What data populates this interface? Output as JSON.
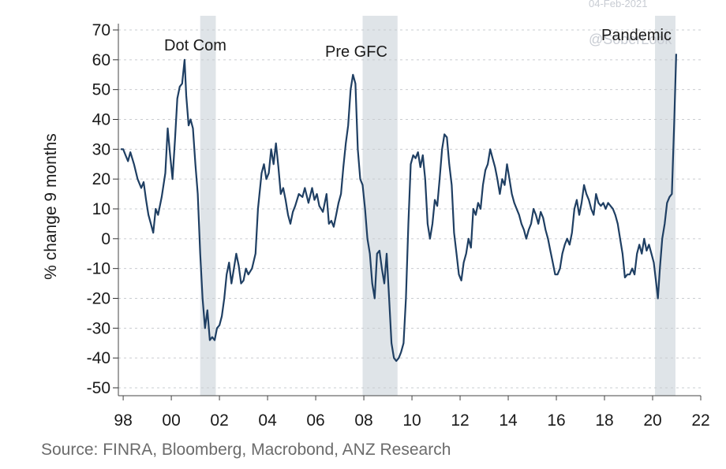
{
  "chart_data": {
    "type": "line",
    "ylabel": "% change 9 months",
    "ylim": [
      -50,
      70
    ],
    "xlim": [
      1997.8,
      2022
    ],
    "y_ticks": [
      70,
      60,
      50,
      40,
      30,
      20,
      10,
      0,
      -10,
      -20,
      -30,
      -40,
      -50
    ],
    "x_ticks": [
      {
        "value": 1998,
        "label": "98"
      },
      {
        "value": 2000,
        "label": "00"
      },
      {
        "value": 2002,
        "label": "02"
      },
      {
        "value": 2004,
        "label": "04"
      },
      {
        "value": 2006,
        "label": "06"
      },
      {
        "value": 2008,
        "label": "08"
      },
      {
        "value": 2010,
        "label": "10"
      },
      {
        "value": 2012,
        "label": "12"
      },
      {
        "value": 2014,
        "label": "14"
      },
      {
        "value": 2016,
        "label": "16"
      },
      {
        "value": 2018,
        "label": "18"
      },
      {
        "value": 2020,
        "label": "20"
      },
      {
        "value": 2022,
        "label": "22"
      }
    ],
    "grid": "horizontal dashed",
    "series_color": "#1f3f63",
    "shade_color": "#dfe4e8",
    "shaded_periods": [
      {
        "label": "Dot Com",
        "start": 2001.2,
        "end": 2001.85
      },
      {
        "label": "Pre GFC",
        "start": 2007.95,
        "end": 2009.4
      },
      {
        "label": "Pandemic",
        "start": 2020.1,
        "end": 2020.95
      }
    ],
    "series": [
      {
        "points": [
          [
            1997.9,
            30
          ],
          [
            1998.0,
            30
          ],
          [
            1998.1,
            28
          ],
          [
            1998.2,
            26
          ],
          [
            1998.3,
            29
          ],
          [
            1998.45,
            25
          ],
          [
            1998.6,
            20
          ],
          [
            1998.75,
            17
          ],
          [
            1998.85,
            19
          ],
          [
            1998.95,
            13
          ],
          [
            1999.05,
            8
          ],
          [
            1999.15,
            5
          ],
          [
            1999.25,
            2
          ],
          [
            1999.35,
            10
          ],
          [
            1999.45,
            8
          ],
          [
            1999.6,
            14
          ],
          [
            1999.75,
            22
          ],
          [
            1999.85,
            37
          ],
          [
            1999.95,
            28
          ],
          [
            2000.05,
            20
          ],
          [
            2000.15,
            33
          ],
          [
            2000.25,
            47
          ],
          [
            2000.35,
            51
          ],
          [
            2000.45,
            52
          ],
          [
            2000.55,
            60
          ],
          [
            2000.62,
            48
          ],
          [
            2000.72,
            38
          ],
          [
            2000.8,
            40
          ],
          [
            2000.9,
            37
          ],
          [
            2001.0,
            25
          ],
          [
            2001.1,
            15
          ],
          [
            2001.2,
            -5
          ],
          [
            2001.3,
            -20
          ],
          [
            2001.4,
            -30
          ],
          [
            2001.5,
            -24
          ],
          [
            2001.6,
            -34
          ],
          [
            2001.7,
            -33
          ],
          [
            2001.8,
            -34
          ],
          [
            2001.9,
            -30
          ],
          [
            2002.0,
            -29
          ],
          [
            2002.1,
            -26
          ],
          [
            2002.2,
            -20
          ],
          [
            2002.3,
            -12
          ],
          [
            2002.4,
            -8
          ],
          [
            2002.5,
            -15
          ],
          [
            2002.6,
            -10
          ],
          [
            2002.7,
            -5
          ],
          [
            2002.8,
            -9
          ],
          [
            2002.9,
            -15
          ],
          [
            2003.0,
            -14
          ],
          [
            2003.1,
            -10
          ],
          [
            2003.2,
            -12
          ],
          [
            2003.35,
            -10
          ],
          [
            2003.5,
            -5
          ],
          [
            2003.6,
            10
          ],
          [
            2003.75,
            22
          ],
          [
            2003.85,
            25
          ],
          [
            2003.95,
            20
          ],
          [
            2004.05,
            22
          ],
          [
            2004.15,
            30
          ],
          [
            2004.25,
            25
          ],
          [
            2004.35,
            32
          ],
          [
            2004.45,
            24
          ],
          [
            2004.55,
            15
          ],
          [
            2004.65,
            17
          ],
          [
            2004.75,
            13
          ],
          [
            2004.85,
            8
          ],
          [
            2004.95,
            5
          ],
          [
            2005.05,
            9
          ],
          [
            2005.15,
            11
          ],
          [
            2005.3,
            15
          ],
          [
            2005.45,
            14
          ],
          [
            2005.55,
            17
          ],
          [
            2005.7,
            12
          ],
          [
            2005.85,
            17
          ],
          [
            2005.95,
            13
          ],
          [
            2006.05,
            15
          ],
          [
            2006.15,
            11
          ],
          [
            2006.3,
            9
          ],
          [
            2006.45,
            15
          ],
          [
            2006.55,
            5
          ],
          [
            2006.65,
            6
          ],
          [
            2006.75,
            4
          ],
          [
            2006.85,
            8
          ],
          [
            2006.95,
            12
          ],
          [
            2007.05,
            15
          ],
          [
            2007.15,
            24
          ],
          [
            2007.25,
            32
          ],
          [
            2007.35,
            38
          ],
          [
            2007.45,
            50
          ],
          [
            2007.55,
            55
          ],
          [
            2007.65,
            52
          ],
          [
            2007.75,
            30
          ],
          [
            2007.85,
            20
          ],
          [
            2007.95,
            18
          ],
          [
            2008.05,
            10
          ],
          [
            2008.15,
            0
          ],
          [
            2008.25,
            -5
          ],
          [
            2008.35,
            -15
          ],
          [
            2008.45,
            -20
          ],
          [
            2008.55,
            -5
          ],
          [
            2008.65,
            -4
          ],
          [
            2008.75,
            -10
          ],
          [
            2008.85,
            -15
          ],
          [
            2008.95,
            -5
          ],
          [
            2009.05,
            -20
          ],
          [
            2009.15,
            -35
          ],
          [
            2009.25,
            -40
          ],
          [
            2009.35,
            -41
          ],
          [
            2009.45,
            -40
          ],
          [
            2009.55,
            -38
          ],
          [
            2009.65,
            -35
          ],
          [
            2009.75,
            -20
          ],
          [
            2009.85,
            5
          ],
          [
            2009.95,
            25
          ],
          [
            2010.05,
            28
          ],
          [
            2010.15,
            27
          ],
          [
            2010.25,
            29
          ],
          [
            2010.35,
            24
          ],
          [
            2010.45,
            28
          ],
          [
            2010.55,
            20
          ],
          [
            2010.65,
            5
          ],
          [
            2010.75,
            0
          ],
          [
            2010.85,
            5
          ],
          [
            2010.95,
            13
          ],
          [
            2011.05,
            11
          ],
          [
            2011.15,
            20
          ],
          [
            2011.25,
            30
          ],
          [
            2011.35,
            35
          ],
          [
            2011.45,
            34
          ],
          [
            2011.55,
            25
          ],
          [
            2011.65,
            18
          ],
          [
            2011.75,
            2
          ],
          [
            2011.85,
            -5
          ],
          [
            2011.95,
            -12
          ],
          [
            2012.05,
            -14
          ],
          [
            2012.15,
            -8
          ],
          [
            2012.25,
            -5
          ],
          [
            2012.35,
            0
          ],
          [
            2012.45,
            -3
          ],
          [
            2012.55,
            10
          ],
          [
            2012.65,
            8
          ],
          [
            2012.75,
            12
          ],
          [
            2012.85,
            10
          ],
          [
            2012.95,
            18
          ],
          [
            2013.05,
            23
          ],
          [
            2013.15,
            25
          ],
          [
            2013.25,
            30
          ],
          [
            2013.35,
            27
          ],
          [
            2013.45,
            24
          ],
          [
            2013.55,
            20
          ],
          [
            2013.65,
            15
          ],
          [
            2013.75,
            20
          ],
          [
            2013.85,
            18
          ],
          [
            2013.95,
            25
          ],
          [
            2014.05,
            20
          ],
          [
            2014.15,
            15
          ],
          [
            2014.25,
            12
          ],
          [
            2014.35,
            10
          ],
          [
            2014.45,
            8
          ],
          [
            2014.55,
            5
          ],
          [
            2014.65,
            3
          ],
          [
            2014.75,
            0
          ],
          [
            2014.85,
            3
          ],
          [
            2014.95,
            5
          ],
          [
            2015.05,
            10
          ],
          [
            2015.15,
            8
          ],
          [
            2015.25,
            5
          ],
          [
            2015.35,
            9
          ],
          [
            2015.45,
            7
          ],
          [
            2015.55,
            3
          ],
          [
            2015.65,
            0
          ],
          [
            2015.75,
            -4
          ],
          [
            2015.85,
            -8
          ],
          [
            2015.95,
            -12
          ],
          [
            2016.05,
            -12
          ],
          [
            2016.15,
            -10
          ],
          [
            2016.25,
            -5
          ],
          [
            2016.35,
            -2
          ],
          [
            2016.45,
            0
          ],
          [
            2016.55,
            -2
          ],
          [
            2016.65,
            2
          ],
          [
            2016.75,
            10
          ],
          [
            2016.85,
            13
          ],
          [
            2016.95,
            8
          ],
          [
            2017.05,
            12
          ],
          [
            2017.15,
            18
          ],
          [
            2017.25,
            15
          ],
          [
            2017.35,
            13
          ],
          [
            2017.45,
            10
          ],
          [
            2017.55,
            8
          ],
          [
            2017.65,
            15
          ],
          [
            2017.75,
            12
          ],
          [
            2017.85,
            11
          ],
          [
            2017.95,
            12
          ],
          [
            2018.05,
            10
          ],
          [
            2018.15,
            12
          ],
          [
            2018.25,
            11
          ],
          [
            2018.35,
            10
          ],
          [
            2018.45,
            8
          ],
          [
            2018.55,
            5
          ],
          [
            2018.65,
            0
          ],
          [
            2018.75,
            -5
          ],
          [
            2018.85,
            -13
          ],
          [
            2018.95,
            -12
          ],
          [
            2019.05,
            -12
          ],
          [
            2019.15,
            -10
          ],
          [
            2019.25,
            -12
          ],
          [
            2019.35,
            -5
          ],
          [
            2019.45,
            -2
          ],
          [
            2019.55,
            -5
          ],
          [
            2019.65,
            0
          ],
          [
            2019.75,
            -4
          ],
          [
            2019.85,
            -2
          ],
          [
            2019.95,
            -5
          ],
          [
            2020.05,
            -8
          ],
          [
            2020.15,
            -15
          ],
          [
            2020.22,
            -20
          ],
          [
            2020.3,
            -10
          ],
          [
            2020.4,
            0
          ],
          [
            2020.5,
            5
          ],
          [
            2020.6,
            12
          ],
          [
            2020.7,
            14
          ],
          [
            2020.8,
            15
          ],
          [
            2020.9,
            40
          ],
          [
            2020.98,
            62
          ]
        ]
      }
    ]
  },
  "annotations": {
    "dotcom": "Dot Com",
    "pregfc": "Pre GFC",
    "pandemic": "Pandemic"
  },
  "watermark": {
    "date": "04-Feb-2021",
    "handle": "@SoberLook"
  },
  "source": "Source: FINRA, Bloomberg, Macrobond, ANZ Research"
}
